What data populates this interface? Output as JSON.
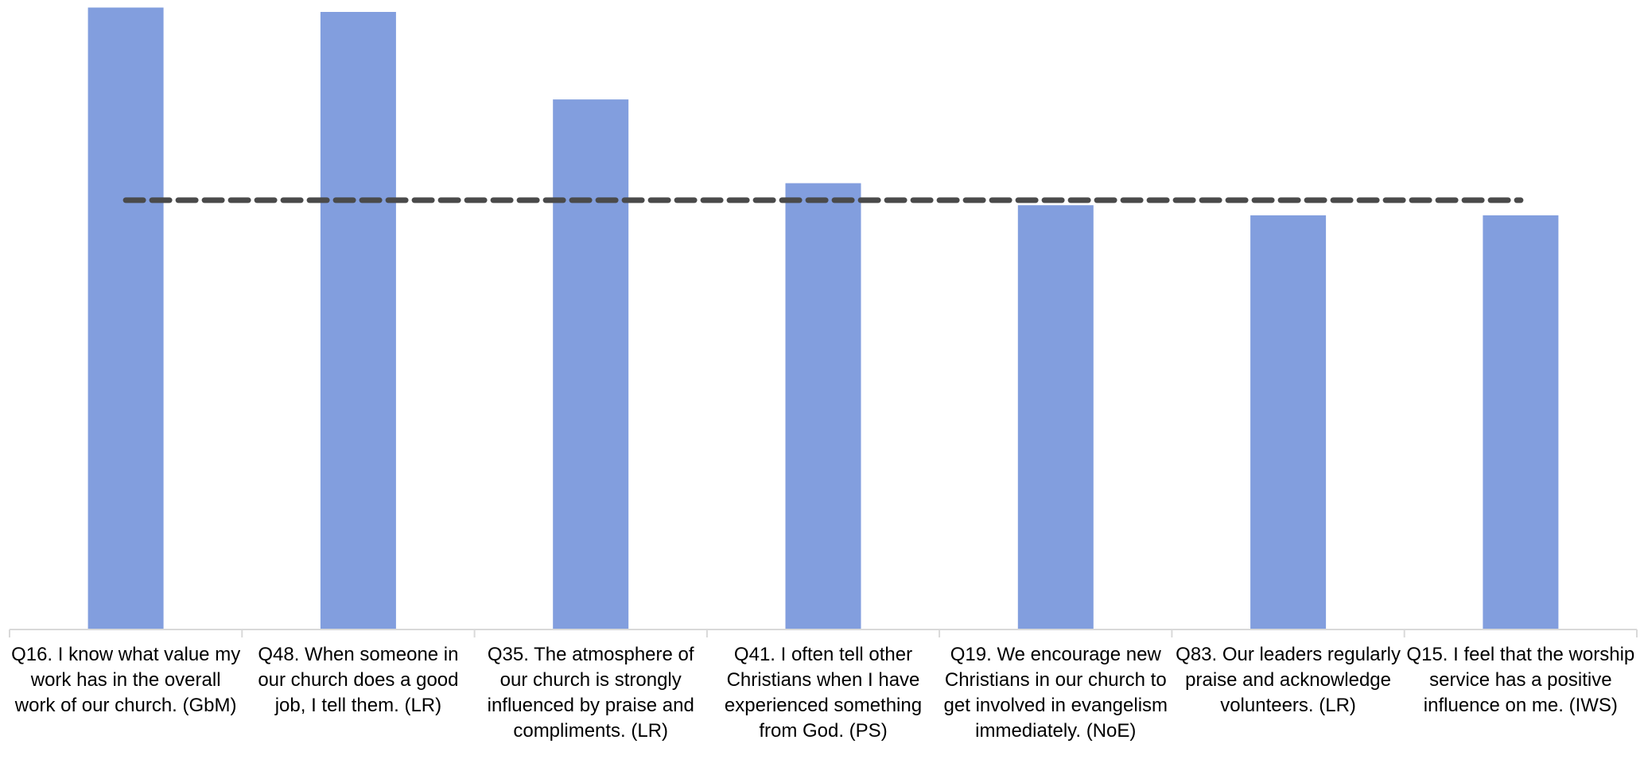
{
  "chart_data": {
    "type": "bar",
    "categories": [
      "Q16. I know what value my work has in the overall work of our church. (GbM)",
      "Q48. When someone in our church does a good job, I tell them. (LR)",
      "Q35. The atmosphere of our church is strongly influenced by praise and compliments. (LR)",
      "Q41. I often tell other Christians when I have experienced something from God. (PS)",
      "Q19. We encourage new Christians in our church to get involved in evangelism immediately. (NoE)",
      "Q83. Our leaders regularly praise and acknowledge volunteers. (LR)",
      "Q15. I feel that the worship service has a positive influence on me. (IWS)"
    ],
    "series": [
      {
        "values": [
          98.8,
          98.1,
          84.2,
          70.9,
          67.4,
          65.8,
          65.8
        ]
      },
      {
        "type": "line",
        "style": "dashed",
        "values": [
          68.2,
          68.2,
          68.2,
          68.2,
          68.2,
          68.2,
          68.2
        ]
      }
    ],
    "ylim": [
      0,
      100
    ],
    "grid": false,
    "legend": "none",
    "colors": {
      "bar": "#829ede",
      "reference_line": "#4a4a4a",
      "axis": "#d9d9d9"
    }
  }
}
